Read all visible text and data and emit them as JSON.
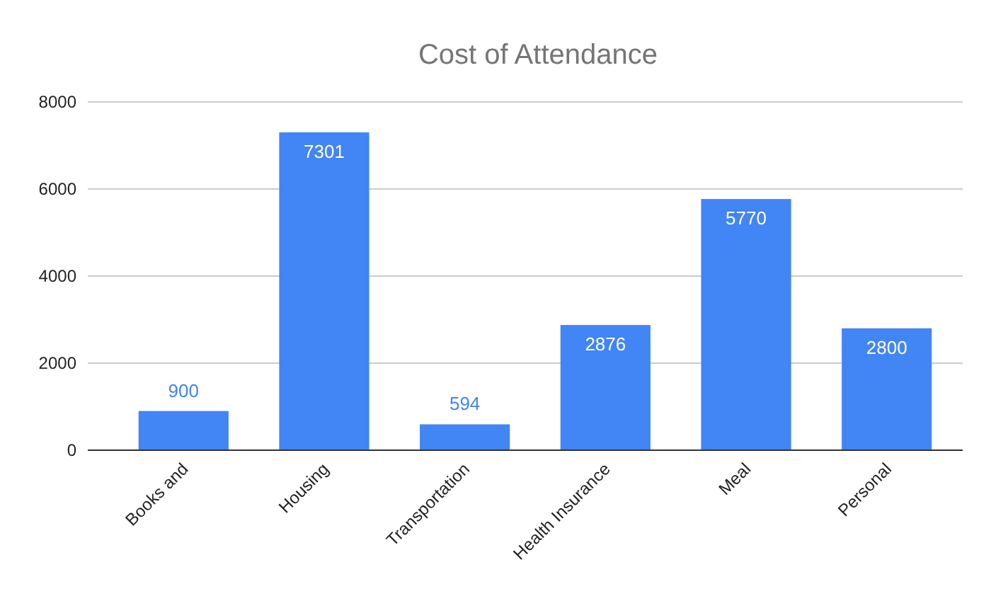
{
  "chart_data": {
    "type": "bar",
    "title": "Cost of Attendance",
    "categories": [
      "Books and",
      "Housing",
      "Transportation",
      "Health Insurance",
      "Meal",
      "Personal"
    ],
    "values": [
      900,
      7301,
      594,
      2876,
      5770,
      2800
    ],
    "color": "#4285f4",
    "ylim": [
      0,
      8000
    ],
    "yticks": [
      0,
      2000,
      4000,
      6000,
      8000
    ],
    "grid": "y",
    "data_labels": true
  }
}
